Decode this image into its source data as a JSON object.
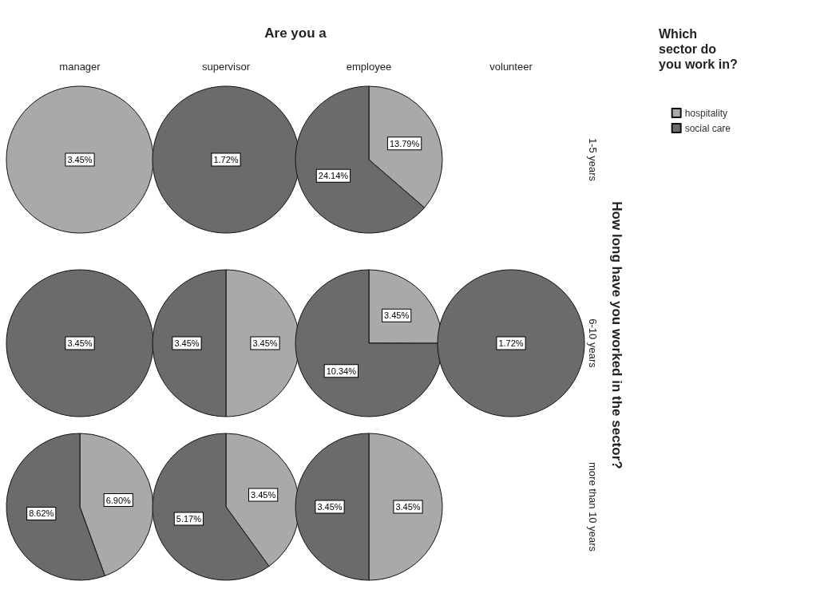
{
  "chart_data": [
    {
      "type": "other",
      "title": "Are you a",
      "ylabel": "How long have you worked in the sector?",
      "categories": [
        "manager",
        "supervisor",
        "employee",
        "volunteer"
      ],
      "y_categories": [
        "1-5 years",
        "6-10 years",
        "more than 10 years"
      ]
    },
    {
      "type": "pie",
      "categories": [
        null
      ],
      "values": [
        3.45
      ],
      "colors": [
        "#a9a9a9"
      ],
      "value_labels": [
        "3.45%"
      ]
    },
    {
      "type": "pie",
      "categories": [
        null
      ],
      "values": [
        1.72
      ],
      "colors": [
        "#6b6b6b"
      ],
      "value_labels": [
        "1.72%"
      ]
    },
    {
      "type": "pie",
      "categories": [
        "hospitality",
        "social care"
      ],
      "values": [
        13.79,
        24.14
      ],
      "colors": [
        "#a9a9a9",
        "#6b6b6b"
      ],
      "value_labels": [
        "13.79%",
        "24.14%"
      ],
      "legend": "top right",
      "legend_title": "Which sector do you work in?"
    },
    {
      "type": "pie",
      "categories": [
        null
      ],
      "values": [
        3.45
      ],
      "colors": [
        "#6b6b6b"
      ],
      "value_labels": [
        "3.45%"
      ]
    },
    {
      "type": "pie",
      "categories": [
        null,
        null
      ],
      "values": [
        3.45,
        3.45
      ],
      "colors": [
        "#a9a9a9",
        "#6b6b6b"
      ],
      "value_labels": [
        "3.45%",
        "3.45%"
      ]
    },
    {
      "type": "pie",
      "categories": [
        null,
        null
      ],
      "values": [
        3.45,
        10.34
      ],
      "colors": [
        "#a9a9a9",
        "#6b6b6b"
      ],
      "value_labels": [
        "3.45%",
        "10.34%"
      ]
    },
    {
      "type": "pie",
      "categories": [
        null
      ],
      "values": [
        1.72
      ],
      "colors": [
        "#6b6b6b"
      ],
      "value_labels": [
        "1.72%"
      ]
    },
    {
      "type": "pie",
      "categories": [
        null,
        null
      ],
      "values": [
        6.9,
        8.62
      ],
      "colors": [
        "#a9a9a9",
        "#6b6b6b"
      ],
      "value_labels": [
        "6.90%",
        "8.62%"
      ]
    },
    {
      "type": "pie",
      "categories": [
        null,
        null
      ],
      "values": [
        3.45,
        5.17
      ],
      "colors": [
        "#a9a9a9",
        "#6b6b6b"
      ],
      "value_labels": [
        "3.45%",
        "5.17%"
      ]
    },
    {
      "type": "pie",
      "categories": [
        null,
        null
      ],
      "values": [
        3.45,
        3.45
      ],
      "colors": [
        "#a9a9a9",
        "#6b6b6b"
      ],
      "value_labels": [
        "3.45%",
        "3.45%"
      ]
    }
  ]
}
